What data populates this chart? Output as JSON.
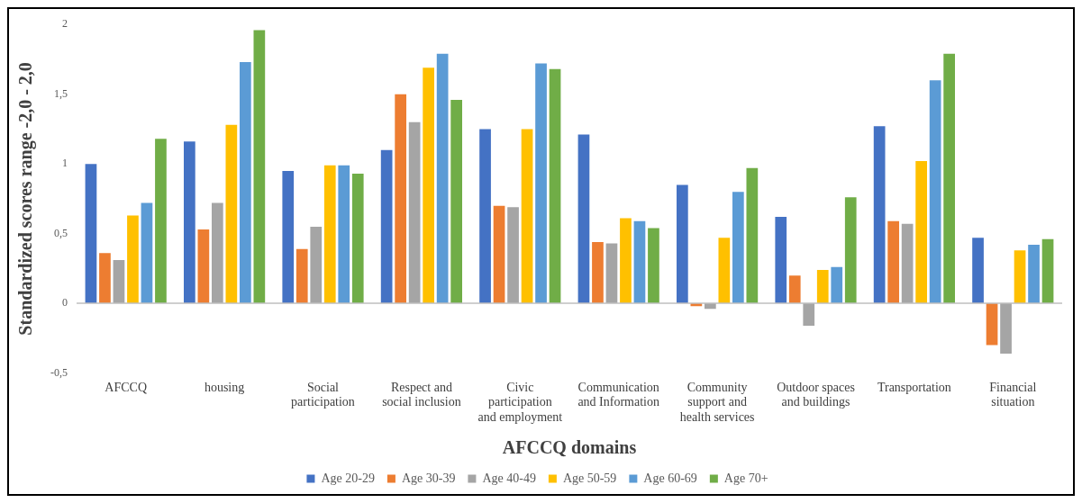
{
  "chart_data": {
    "type": "bar",
    "xlabel": "AFCCQ domains",
    "ylabel": "Standardized scores range -2,0 - 2,0",
    "categories": [
      "AFCCQ",
      "housing",
      "Social participation",
      "Respect and social inclusion",
      "Civic participation and employment",
      "Communication and Information",
      "Community support and health services",
      "Outdoor spaces and buildings",
      "Transportation",
      "Financial situation"
    ],
    "series": [
      {
        "name": "Age 20-29",
        "color": "#4472c4",
        "values": [
          1.0,
          1.16,
          0.95,
          1.1,
          1.25,
          1.21,
          0.85,
          0.62,
          1.27,
          0.47
        ]
      },
      {
        "name": "Age 30-39",
        "color": "#ed7d31",
        "values": [
          0.36,
          0.53,
          0.39,
          1.5,
          0.7,
          0.44,
          -0.02,
          0.2,
          0.59,
          -0.3
        ]
      },
      {
        "name": "Age 40-49",
        "color": "#a5a5a5",
        "values": [
          0.31,
          0.72,
          0.55,
          1.3,
          0.69,
          0.43,
          -0.04,
          -0.16,
          0.57,
          -0.36
        ]
      },
      {
        "name": "Age 50-59",
        "color": "#ffc000",
        "values": [
          0.63,
          1.28,
          0.99,
          1.69,
          1.25,
          0.61,
          0.47,
          0.24,
          1.02,
          0.38
        ]
      },
      {
        "name": "Age 60-69",
        "color": "#5b9bd5",
        "values": [
          0.72,
          1.73,
          0.99,
          1.79,
          1.72,
          0.59,
          0.8,
          0.26,
          1.6,
          0.42
        ]
      },
      {
        "name": "Age 70+",
        "color": "#70ad47",
        "values": [
          1.18,
          1.96,
          0.93,
          1.46,
          1.68,
          0.54,
          0.97,
          0.76,
          1.79,
          0.46
        ]
      }
    ],
    "ylim": [
      -0.5,
      2
    ],
    "yticks": [
      {
        "value": -0.5,
        "label": "-0,5"
      },
      0,
      {
        "value": 0.5,
        "label": "0,5"
      },
      1,
      {
        "value": 1.5,
        "label": "1,5"
      },
      2
    ],
    "ref_lines": [
      {
        "axis": "y",
        "value": 0,
        "color": "#bfbfbf"
      }
    ],
    "grid": false,
    "legend": "bottom"
  }
}
